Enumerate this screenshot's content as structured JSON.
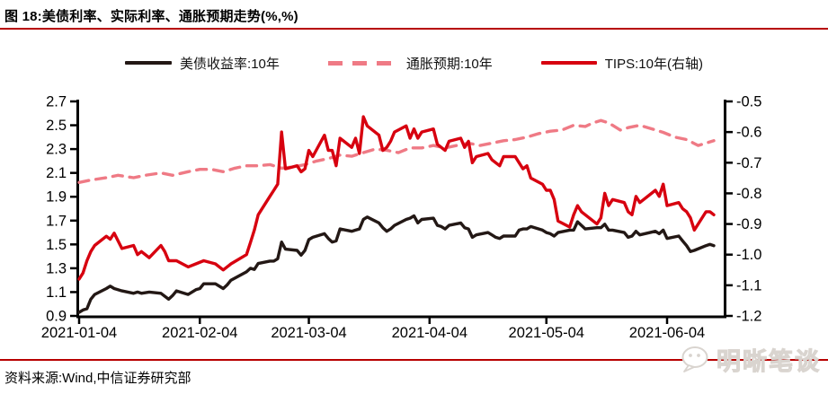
{
  "title": "图 18:美债利率、实际利率、通胀预期走势(%,%)",
  "footer": {
    "source": "资料来源:Wind,中信证券研究部"
  },
  "watermark": {
    "text": "明晰笔谈",
    "icon": "wechat-chat-bubble-icon"
  },
  "colors": {
    "rule_red": "#b70000",
    "series_black": "#231815",
    "series_pink": "#ef7a85",
    "series_red": "#d7000f",
    "axis_black": "#000000"
  },
  "legend": [
    {
      "label": "美债收益率:10年",
      "style": "solid",
      "color": "#231815"
    },
    {
      "label": "通胀预期:10年",
      "style": "dashed",
      "color": "#ef7a85"
    },
    {
      "label": "TIPS:10年(右轴)",
      "style": "solid",
      "color": "#d7000f"
    }
  ],
  "chart_data": {
    "type": "line",
    "title": "图 18:美债利率、实际利率、通胀预期走势(%,%)",
    "x_axis": {
      "unit": "days since 2021-01-04",
      "tick_days": [
        0,
        31,
        59,
        90,
        120,
        151
      ],
      "tick_labels": [
        "2021-01-04",
        "2021-02-04",
        "2021-03-04",
        "2021-04-04",
        "2021-05-04",
        "2021-06-04"
      ],
      "range_days": [
        0,
        165.5
      ]
    },
    "left_axis": {
      "min": 0.9,
      "max": 2.7,
      "step": 0.2,
      "ticks": [
        2.7,
        2.5,
        2.3,
        2.1,
        1.9,
        1.7,
        1.5,
        1.3,
        1.1,
        0.9
      ]
    },
    "right_axis": {
      "min": -1.2,
      "max": -0.5,
      "step": 0.1,
      "ticks": [
        -0.5,
        -0.6,
        -0.7,
        -0.8,
        -0.9,
        -1.0,
        -1.1,
        -1.2
      ]
    },
    "grid": false,
    "legend_position": "top",
    "series": [
      {
        "name": "美债收益率:10年",
        "id": "us-treasury-10y",
        "axis": "left",
        "color": "#231815",
        "dash": false,
        "points": [
          [
            0,
            0.93
          ],
          [
            1,
            0.95
          ],
          [
            2,
            0.96
          ],
          [
            3,
            1.04
          ],
          [
            4,
            1.08
          ],
          [
            7,
            1.13
          ],
          [
            8,
            1.15
          ],
          [
            9,
            1.13
          ],
          [
            11,
            1.11
          ],
          [
            14,
            1.09
          ],
          [
            15,
            1.1
          ],
          [
            16,
            1.09
          ],
          [
            18,
            1.1
          ],
          [
            21,
            1.09
          ],
          [
            23,
            1.04
          ],
          [
            24,
            1.07
          ],
          [
            25,
            1.11
          ],
          [
            28,
            1.08
          ],
          [
            29,
            1.1
          ],
          [
            30,
            1.12
          ],
          [
            31,
            1.13
          ],
          [
            32,
            1.17
          ],
          [
            35,
            1.17
          ],
          [
            37,
            1.13
          ],
          [
            38,
            1.16
          ],
          [
            39,
            1.2
          ],
          [
            43,
            1.27
          ],
          [
            44,
            1.3
          ],
          [
            45,
            1.29
          ],
          [
            46,
            1.34
          ],
          [
            49,
            1.36
          ],
          [
            50,
            1.36
          ],
          [
            51,
            1.38
          ],
          [
            52,
            1.52
          ],
          [
            53,
            1.46
          ],
          [
            56,
            1.45
          ],
          [
            57,
            1.41
          ],
          [
            58,
            1.45
          ],
          [
            59,
            1.54
          ],
          [
            60,
            1.56
          ],
          [
            63,
            1.59
          ],
          [
            64,
            1.55
          ],
          [
            65,
            1.52
          ],
          [
            66,
            1.53
          ],
          [
            67,
            1.63
          ],
          [
            70,
            1.61
          ],
          [
            71,
            1.62
          ],
          [
            72,
            1.63
          ],
          [
            73,
            1.71
          ],
          [
            74,
            1.73
          ],
          [
            77,
            1.68
          ],
          [
            78,
            1.64
          ],
          [
            79,
            1.61
          ],
          [
            80,
            1.63
          ],
          [
            81,
            1.66
          ],
          [
            84,
            1.71
          ],
          [
            85,
            1.72
          ],
          [
            86,
            1.74
          ],
          [
            87,
            1.68
          ],
          [
            88,
            1.71
          ],
          [
            91,
            1.72
          ],
          [
            92,
            1.66
          ],
          [
            93,
            1.65
          ],
          [
            94,
            1.63
          ],
          [
            95,
            1.66
          ],
          [
            98,
            1.68
          ],
          [
            99,
            1.64
          ],
          [
            100,
            1.63
          ],
          [
            101,
            1.56
          ],
          [
            102,
            1.58
          ],
          [
            105,
            1.6
          ],
          [
            106,
            1.58
          ],
          [
            107,
            1.56
          ],
          [
            108,
            1.55
          ],
          [
            109,
            1.57
          ],
          [
            112,
            1.57
          ],
          [
            113,
            1.62
          ],
          [
            114,
            1.63
          ],
          [
            115,
            1.63
          ],
          [
            116,
            1.65
          ],
          [
            119,
            1.62
          ],
          [
            120,
            1.6
          ],
          [
            121,
            1.59
          ],
          [
            122,
            1.57
          ],
          [
            123,
            1.6
          ],
          [
            126,
            1.62
          ],
          [
            127,
            1.62
          ],
          [
            128,
            1.69
          ],
          [
            129,
            1.66
          ],
          [
            130,
            1.63
          ],
          [
            133,
            1.64
          ],
          [
            134,
            1.64
          ],
          [
            135,
            1.67
          ],
          [
            136,
            1.62
          ],
          [
            137,
            1.62
          ],
          [
            140,
            1.6
          ],
          [
            141,
            1.56
          ],
          [
            142,
            1.57
          ],
          [
            143,
            1.61
          ],
          [
            144,
            1.58
          ],
          [
            148,
            1.61
          ],
          [
            149,
            1.59
          ],
          [
            150,
            1.62
          ],
          [
            151,
            1.55
          ],
          [
            154,
            1.57
          ],
          [
            155,
            1.53
          ],
          [
            156,
            1.49
          ],
          [
            157,
            1.44
          ],
          [
            158,
            1.45
          ],
          [
            161,
            1.49
          ],
          [
            162,
            1.5
          ],
          [
            163,
            1.49
          ]
        ]
      },
      {
        "name": "通胀预期:10年",
        "id": "inflation-expectation-10y",
        "axis": "left",
        "color": "#ef7a85",
        "dash": true,
        "points": [
          [
            0,
            2.02
          ],
          [
            3,
            2.04
          ],
          [
            7,
            2.06
          ],
          [
            10,
            2.08
          ],
          [
            14,
            2.06
          ],
          [
            17,
            2.08
          ],
          [
            21,
            2.1
          ],
          [
            24,
            2.08
          ],
          [
            28,
            2.11
          ],
          [
            31,
            2.13
          ],
          [
            34,
            2.13
          ],
          [
            37,
            2.11
          ],
          [
            40,
            2.14
          ],
          [
            43,
            2.16
          ],
          [
            46,
            2.16
          ],
          [
            49,
            2.17
          ],
          [
            52,
            2.14
          ],
          [
            55,
            2.15
          ],
          [
            58,
            2.17
          ],
          [
            61,
            2.2
          ],
          [
            64,
            2.22
          ],
          [
            67,
            2.25
          ],
          [
            70,
            2.24
          ],
          [
            73,
            2.27
          ],
          [
            76,
            2.3
          ],
          [
            79,
            2.29
          ],
          [
            82,
            2.27
          ],
          [
            85,
            2.31
          ],
          [
            88,
            2.31
          ],
          [
            91,
            2.33
          ],
          [
            94,
            2.31
          ],
          [
            97,
            2.33
          ],
          [
            100,
            2.35
          ],
          [
            103,
            2.33
          ],
          [
            106,
            2.35
          ],
          [
            109,
            2.37
          ],
          [
            112,
            2.38
          ],
          [
            115,
            2.4
          ],
          [
            118,
            2.43
          ],
          [
            121,
            2.45
          ],
          [
            124,
            2.46
          ],
          [
            127,
            2.5
          ],
          [
            130,
            2.49
          ],
          [
            132,
            2.52
          ],
          [
            134,
            2.54
          ],
          [
            136,
            2.52
          ],
          [
            139,
            2.46
          ],
          [
            141,
            2.48
          ],
          [
            144,
            2.5
          ],
          [
            147,
            2.47
          ],
          [
            150,
            2.44
          ],
          [
            153,
            2.4
          ],
          [
            156,
            2.38
          ],
          [
            159,
            2.33
          ],
          [
            161,
            2.35
          ],
          [
            163,
            2.37
          ]
        ]
      },
      {
        "name": "TIPS:10年(右轴)",
        "id": "tips-10y",
        "axis": "right",
        "color": "#d7000f",
        "dash": false,
        "points": [
          [
            0,
            -1.08
          ],
          [
            1,
            -1.06
          ],
          [
            2,
            -1.02
          ],
          [
            3,
            -0.99
          ],
          [
            4,
            -0.97
          ],
          [
            7,
            -0.94
          ],
          [
            8,
            -0.95
          ],
          [
            9,
            -0.93
          ],
          [
            11,
            -0.98
          ],
          [
            14,
            -0.97
          ],
          [
            15,
            -1.0
          ],
          [
            16,
            -0.99
          ],
          [
            18,
            -1.01
          ],
          [
            21,
            -0.97
          ],
          [
            22,
            -0.99
          ],
          [
            23,
            -1.02
          ],
          [
            25,
            -1.02
          ],
          [
            28,
            -1.04
          ],
          [
            30,
            -1.03
          ],
          [
            32,
            -1.02
          ],
          [
            35,
            -1.03
          ],
          [
            37,
            -1.05
          ],
          [
            39,
            -1.03
          ],
          [
            43,
            -1.0
          ],
          [
            44,
            -0.96
          ],
          [
            45,
            -0.92
          ],
          [
            46,
            -0.87
          ],
          [
            49,
            -0.81
          ],
          [
            50,
            -0.79
          ],
          [
            51,
            -0.77
          ],
          [
            52,
            -0.6
          ],
          [
            53,
            -0.72
          ],
          [
            56,
            -0.71
          ],
          [
            57,
            -0.73
          ],
          [
            58,
            -0.72
          ],
          [
            59,
            -0.66
          ],
          [
            60,
            -0.68
          ],
          [
            63,
            -0.61
          ],
          [
            64,
            -0.66
          ],
          [
            65,
            -0.66
          ],
          [
            66,
            -0.71
          ],
          [
            67,
            -0.62
          ],
          [
            70,
            -0.65
          ],
          [
            71,
            -0.62
          ],
          [
            72,
            -0.67
          ],
          [
            73,
            -0.55
          ],
          [
            74,
            -0.58
          ],
          [
            77,
            -0.61
          ],
          [
            78,
            -0.66
          ],
          [
            79,
            -0.65
          ],
          [
            80,
            -0.63
          ],
          [
            81,
            -0.6
          ],
          [
            84,
            -0.58
          ],
          [
            85,
            -0.62
          ],
          [
            86,
            -0.59
          ],
          [
            87,
            -0.62
          ],
          [
            88,
            -0.6
          ],
          [
            91,
            -0.59
          ],
          [
            92,
            -0.64
          ],
          [
            93,
            -0.65
          ],
          [
            94,
            -0.66
          ],
          [
            95,
            -0.63
          ],
          [
            98,
            -0.62
          ],
          [
            99,
            -0.65
          ],
          [
            100,
            -0.63
          ],
          [
            101,
            -0.7
          ],
          [
            102,
            -0.68
          ],
          [
            105,
            -0.67
          ],
          [
            106,
            -0.69
          ],
          [
            107,
            -0.7
          ],
          [
            108,
            -0.71
          ],
          [
            109,
            -0.68
          ],
          [
            112,
            -0.68
          ],
          [
            113,
            -0.7
          ],
          [
            114,
            -0.72
          ],
          [
            115,
            -0.71
          ],
          [
            116,
            -0.75
          ],
          [
            119,
            -0.77
          ],
          [
            120,
            -0.79
          ],
          [
            121,
            -0.79
          ],
          [
            122,
            -0.82
          ],
          [
            123,
            -0.89
          ],
          [
            126,
            -0.91
          ],
          [
            127,
            -0.87
          ],
          [
            128,
            -0.84
          ],
          [
            129,
            -0.86
          ],
          [
            130,
            -0.87
          ],
          [
            133,
            -0.9
          ],
          [
            134,
            -0.88
          ],
          [
            135,
            -0.8
          ],
          [
            136,
            -0.84
          ],
          [
            137,
            -0.82
          ],
          [
            140,
            -0.83
          ],
          [
            141,
            -0.86
          ],
          [
            142,
            -0.87
          ],
          [
            143,
            -0.81
          ],
          [
            144,
            -0.83
          ],
          [
            148,
            -0.79
          ],
          [
            149,
            -0.81
          ],
          [
            150,
            -0.77
          ],
          [
            151,
            -0.84
          ],
          [
            154,
            -0.83
          ],
          [
            155,
            -0.85
          ],
          [
            156,
            -0.86
          ],
          [
            157,
            -0.88
          ],
          [
            158,
            -0.92
          ],
          [
            161,
            -0.86
          ],
          [
            162,
            -0.86
          ],
          [
            163,
            -0.87
          ]
        ]
      }
    ]
  }
}
